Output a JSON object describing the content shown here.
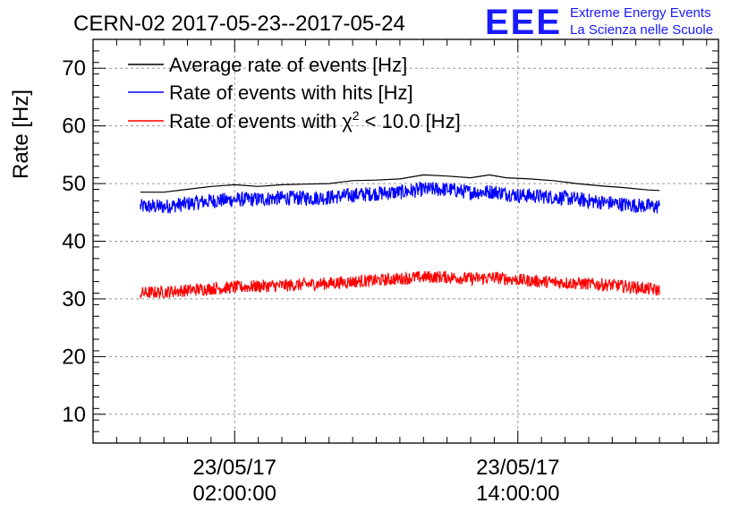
{
  "title": "CERN-02 2017-05-23--2017-05-24",
  "logo": {
    "mark": "EEE",
    "line1": "Extreme Energy Events",
    "line2": "La Scienza nelle Scuole",
    "color": "#1a1aff"
  },
  "chart_data": {
    "type": "line",
    "title": "CERN-02 2017-05-23--2017-05-24",
    "ylabel": "Rate [Hz]",
    "xlabel": "",
    "ylim": [
      5,
      75
    ],
    "yticks": [
      10,
      20,
      30,
      40,
      50,
      60,
      70
    ],
    "xlim_hours": [
      -1,
      25.5
    ],
    "xticks": [
      {
        "date": "23/05/17",
        "time": "02:00:00",
        "hour": 5
      },
      {
        "date": "23/05/17",
        "time": "14:00:00",
        "hour": 17
      }
    ],
    "grid": true,
    "legend_position": "top-left",
    "series": [
      {
        "name": "Average rate of events [Hz]",
        "legend_html": "Average rate of events [Hz]",
        "color": "#000000",
        "x_hours": [
          1,
          2,
          3,
          4,
          5,
          6,
          7,
          8,
          9,
          10,
          11,
          12,
          13,
          14,
          15,
          15.8,
          16.5,
          17.5,
          18.5,
          19.5,
          20.5,
          21.5,
          22.5,
          23
        ],
        "values": [
          48.5,
          48.5,
          49.0,
          49.5,
          49.8,
          49.5,
          49.8,
          49.9,
          50.0,
          50.5,
          50.6,
          50.8,
          51.5,
          51.3,
          51.0,
          51.5,
          51.0,
          50.8,
          50.5,
          50.0,
          49.6,
          49.3,
          48.9,
          48.8
        ]
      },
      {
        "name": "Rate of events with hits [Hz]",
        "color": "#0000ff",
        "x_hours": [
          1,
          2,
          3,
          4,
          5,
          6,
          7,
          8,
          9,
          10,
          11,
          12,
          13,
          14,
          15,
          16,
          17,
          18,
          19,
          20,
          21,
          22,
          23
        ],
        "values": [
          46.0,
          46.0,
          46.5,
          47.0,
          47.2,
          47.3,
          47.5,
          47.5,
          47.6,
          48.0,
          48.3,
          48.5,
          49.0,
          49.0,
          48.5,
          48.6,
          48.0,
          47.8,
          47.5,
          47.0,
          46.6,
          46.2,
          46.0
        ],
        "noise": 1.3
      },
      {
        "name": "Rate of events with χ2 < 10.0 [Hz]",
        "color": "#ff0000",
        "x_hours": [
          1,
          2,
          3,
          4,
          5,
          6,
          7,
          8,
          9,
          10,
          11,
          12,
          13,
          14,
          15,
          16,
          17,
          18,
          19,
          20,
          21,
          22,
          23
        ],
        "values": [
          31.0,
          31.2,
          31.5,
          31.8,
          32.0,
          32.2,
          32.3,
          32.5,
          32.7,
          33.0,
          33.2,
          33.5,
          33.8,
          33.8,
          33.5,
          33.7,
          33.3,
          33.0,
          32.8,
          32.6,
          32.4,
          32.0,
          31.5
        ],
        "noise": 1.1
      }
    ]
  }
}
